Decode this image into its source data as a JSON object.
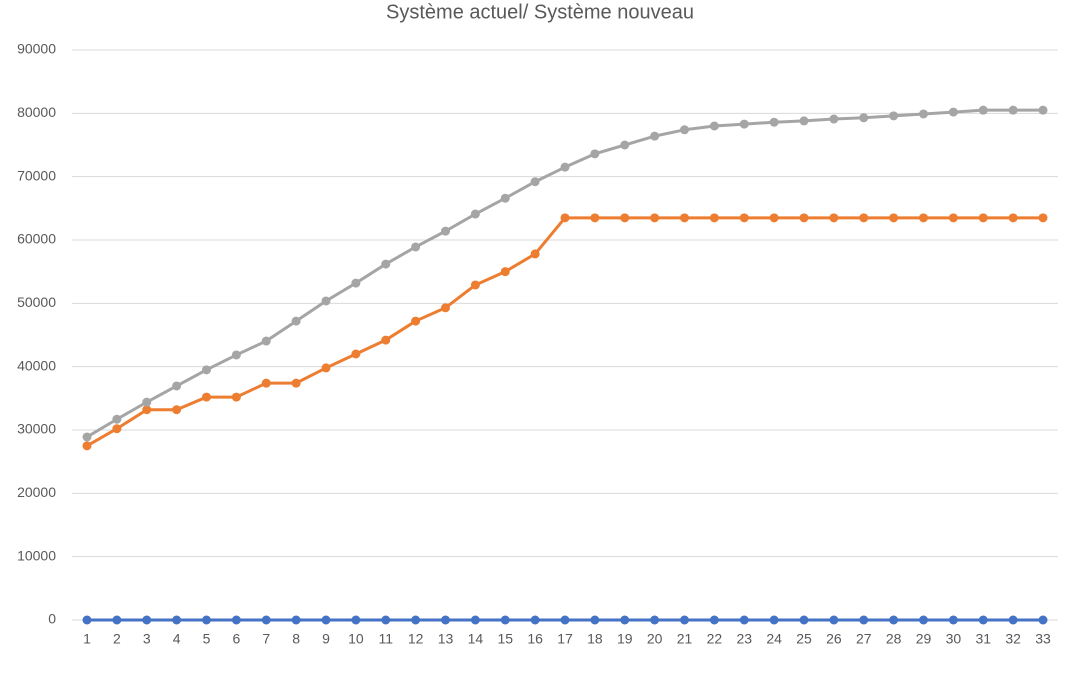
{
  "chart_data": {
    "type": "line",
    "title": "Système actuel/ Système nouveau",
    "categories": [
      "1",
      "2",
      "3",
      "4",
      "5",
      "6",
      "7",
      "8",
      "9",
      "10",
      "11",
      "12",
      "13",
      "14",
      "15",
      "16",
      "17",
      "18",
      "19",
      "20",
      "21",
      "22",
      "23",
      "24",
      "25",
      "26",
      "27",
      "28",
      "29",
      "30",
      "31",
      "32",
      "33"
    ],
    "series": [
      {
        "color": "#4472c4",
        "values": [
          0,
          0,
          0,
          0,
          0,
          0,
          0,
          0,
          0,
          0,
          0,
          0,
          0,
          0,
          0,
          0,
          0,
          0,
          0,
          0,
          0,
          0,
          0,
          0,
          0,
          0,
          0,
          0,
          0,
          0,
          0,
          0,
          0
        ]
      },
      {
        "color": "#ed7d31",
        "values": [
          27500,
          30200,
          33200,
          33200,
          35200,
          35200,
          37400,
          37400,
          39800,
          42000,
          44200,
          47200,
          49300,
          52900,
          55000,
          57800,
          63500,
          63500,
          63500,
          63500,
          63500,
          63500,
          63500,
          63500,
          63500,
          63500,
          63500,
          63500,
          63500,
          63500,
          63500,
          63500,
          63500
        ]
      },
      {
        "color": "#a5a5a5",
        "values": [
          28900,
          31700,
          34400,
          36950,
          39500,
          41850,
          44050,
          47200,
          50370,
          53200,
          56200,
          58900,
          61400,
          64100,
          66600,
          69200,
          71500,
          73600,
          75000,
          76400,
          77400,
          78000,
          78300,
          78600,
          78800,
          79100,
          79300,
          79600,
          79900,
          80200,
          80500,
          80500,
          80500
        ]
      }
    ],
    "ylim": [
      0,
      90000
    ],
    "yticks": [
      0,
      10000,
      20000,
      30000,
      40000,
      50000,
      60000,
      70000,
      80000,
      90000
    ],
    "grid": true
  }
}
